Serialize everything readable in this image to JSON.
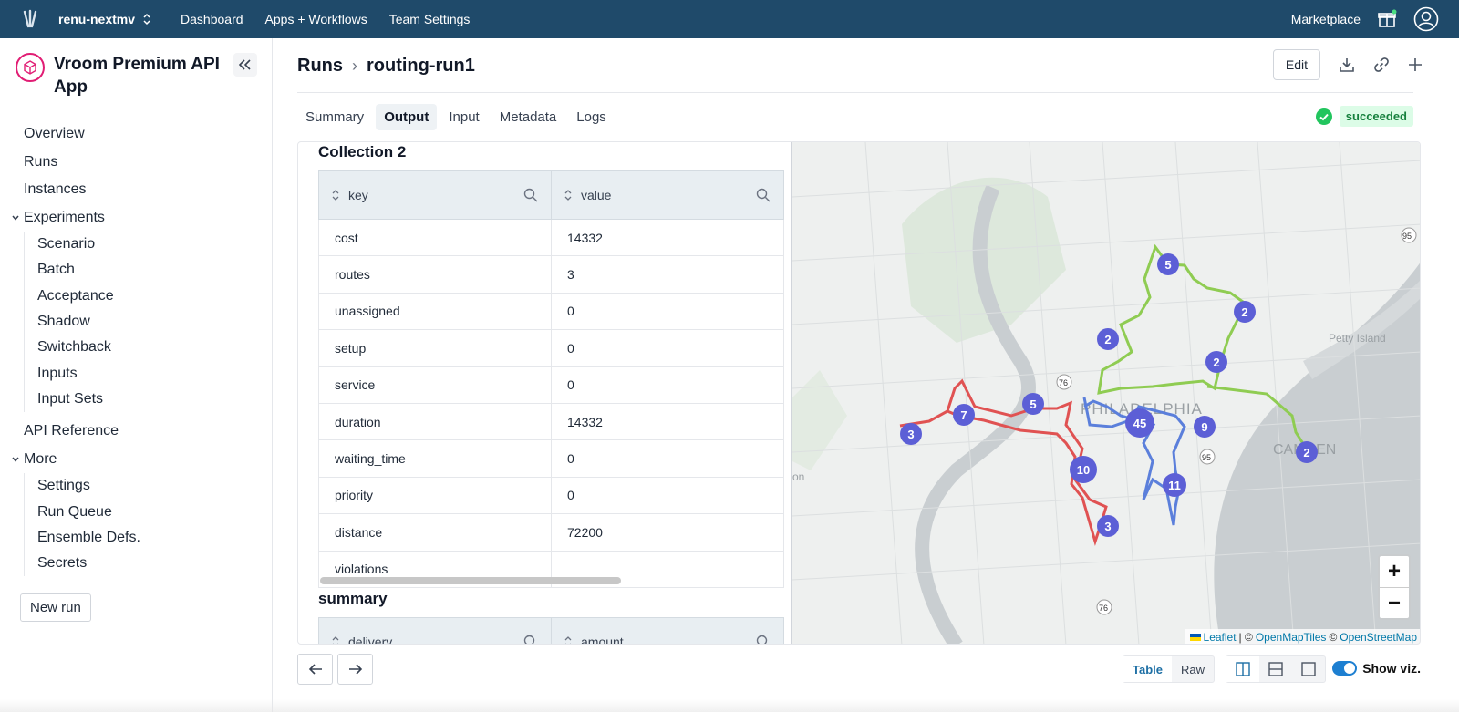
{
  "topbar": {
    "org_name": "renu-nextmv",
    "nav": [
      "Dashboard",
      "Apps + Workflows",
      "Team Settings"
    ],
    "marketplace": "Marketplace"
  },
  "sidebar": {
    "app_title": "Vroom Premium API App",
    "items": [
      "Overview",
      "Runs",
      "Instances"
    ],
    "experiments_label": "Experiments",
    "experiments": [
      "Scenario",
      "Batch",
      "Acceptance",
      "Shadow",
      "Switchback",
      "Inputs",
      "Input Sets"
    ],
    "api_reference": "API Reference",
    "more_label": "More",
    "more": [
      "Settings",
      "Run Queue",
      "Ensemble Defs.",
      "Secrets"
    ],
    "new_run": "New run"
  },
  "header": {
    "crumb_root": "Runs",
    "crumb_current": "routing-run1",
    "edit_label": "Edit"
  },
  "tabs": [
    "Summary",
    "Output",
    "Input",
    "Metadata",
    "Logs"
  ],
  "active_tab": "Output",
  "status": "succeeded",
  "collection": {
    "title": "Collection 2",
    "columns": [
      "key",
      "value"
    ],
    "rows": [
      [
        "cost",
        "14332"
      ],
      [
        "routes",
        "3"
      ],
      [
        "unassigned",
        "0"
      ],
      [
        "setup",
        "0"
      ],
      [
        "service",
        "0"
      ],
      [
        "duration",
        "14332"
      ],
      [
        "waiting_time",
        "0"
      ],
      [
        "priority",
        "0"
      ],
      [
        "distance",
        "72200"
      ],
      [
        "violations",
        ""
      ]
    ]
  },
  "summary": {
    "title": "summary",
    "columns": [
      "delivery",
      "amount"
    ]
  },
  "map": {
    "labels": [
      "PHILADELPHIA",
      "CAMDEN",
      "Petty Island"
    ],
    "route_colors": {
      "red": "#e05252",
      "blue": "#5b7fdb",
      "green": "#8fcc52"
    },
    "markers": [
      "5",
      "2",
      "2",
      "2",
      "5",
      "7",
      "3",
      "45",
      "9",
      "10",
      "11",
      "3",
      "2"
    ],
    "attribution": {
      "leaflet": "Leaflet",
      "sep1": "| ©",
      "omt": "OpenMapTiles",
      "sep2": "©",
      "osm": "OpenStreetMap"
    },
    "highway_shields": [
      "95",
      "76",
      "95",
      "76"
    ],
    "partial_label": "on"
  },
  "bottom": {
    "view_modes": [
      "Table",
      "Raw"
    ],
    "show_viz": "Show viz."
  }
}
